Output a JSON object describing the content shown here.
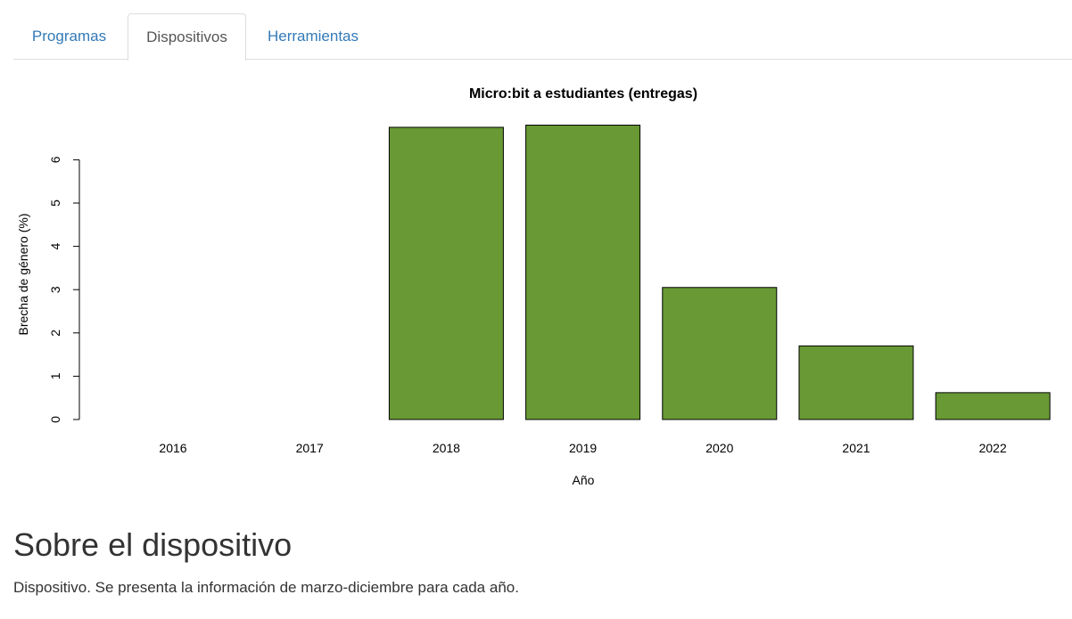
{
  "tabs": [
    {
      "label": "Programas",
      "active": false
    },
    {
      "label": "Dispositivos",
      "active": true
    },
    {
      "label": "Herramientas",
      "active": false
    }
  ],
  "chart_data": {
    "type": "bar",
    "title": "Micro:bit a estudiantes (entregas)",
    "xlabel": "Año",
    "ylabel": "Brecha de género (%)",
    "categories": [
      "2016",
      "2017",
      "2018",
      "2019",
      "2020",
      "2021",
      "2022"
    ],
    "values": [
      0,
      0,
      6.75,
      6.8,
      3.05,
      1.7,
      0.62
    ],
    "ylim": [
      0,
      6.9
    ],
    "yticks": [
      0,
      1,
      2,
      3,
      4,
      5,
      6
    ],
    "bar_color": "#689934",
    "grid": false
  },
  "about": {
    "heading": "Sobre el dispositivo",
    "text": "Dispositivo. Se presenta la información de marzo-diciembre para cada año."
  }
}
